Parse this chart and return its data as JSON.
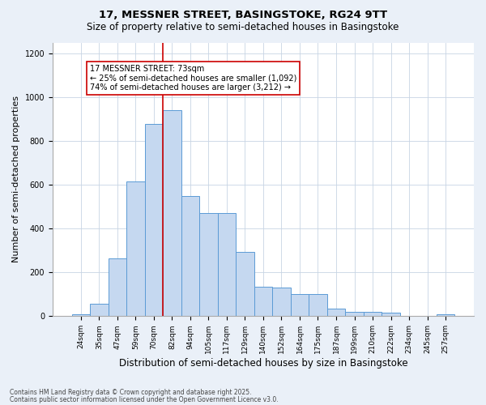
{
  "title1": "17, MESSNER STREET, BASINGSTOKE, RG24 9TT",
  "title2": "Size of property relative to semi-detached houses in Basingstoke",
  "xlabel": "Distribution of semi-detached houses by size in Basingstoke",
  "ylabel": "Number of semi-detached properties",
  "categories": [
    "24sqm",
    "35sqm",
    "47sqm",
    "59sqm",
    "70sqm",
    "82sqm",
    "94sqm",
    "105sqm",
    "117sqm",
    "129sqm",
    "140sqm",
    "152sqm",
    "164sqm",
    "175sqm",
    "187sqm",
    "199sqm",
    "210sqm",
    "222sqm",
    "234sqm",
    "245sqm",
    "257sqm"
  ],
  "values": [
    10,
    55,
    265,
    615,
    880,
    940,
    550,
    470,
    470,
    295,
    135,
    130,
    100,
    100,
    35,
    20,
    18,
    15,
    0,
    0,
    10
  ],
  "bar_color": "#c5d8f0",
  "bar_edge_color": "#5b9bd5",
  "property_line_x": 4.5,
  "annotation_text": "17 MESSNER STREET: 73sqm\n← 25% of semi-detached houses are smaller (1,092)\n74% of semi-detached houses are larger (3,212) →",
  "annotation_box_color": "#ffffff",
  "annotation_box_edge_color": "#cc0000",
  "vline_color": "#cc0000",
  "ylim": [
    0,
    1250
  ],
  "yticks": [
    0,
    200,
    400,
    600,
    800,
    1000,
    1200
  ],
  "footnote1": "Contains HM Land Registry data © Crown copyright and database right 2025.",
  "footnote2": "Contains public sector information licensed under the Open Government Licence v3.0.",
  "bg_color": "#eaf0f8",
  "plot_bg_color": "#ffffff",
  "title_fontsize": 9.5,
  "subtitle_fontsize": 8.5,
  "ylabel_fontsize": 8,
  "xlabel_fontsize": 8.5,
  "tick_fontsize": 6.5,
  "annot_fontsize": 7,
  "footnote_fontsize": 5.5
}
